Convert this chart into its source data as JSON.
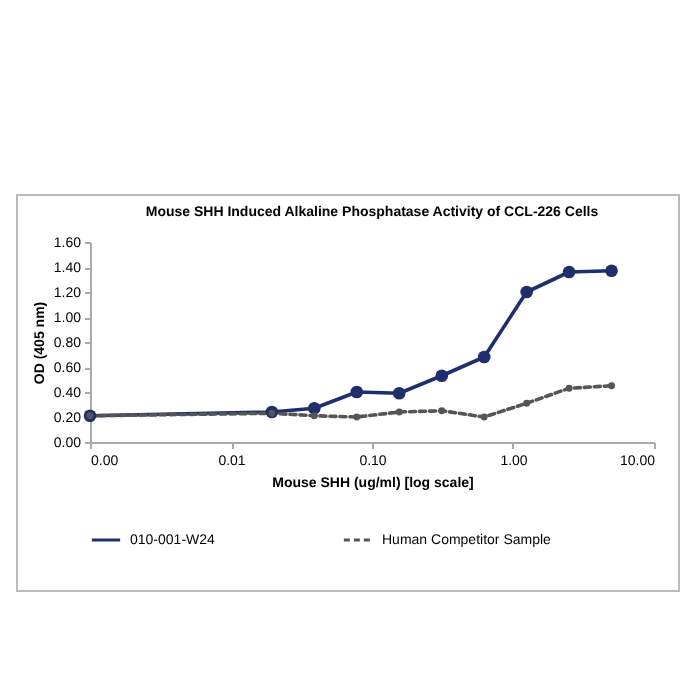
{
  "chart_data": {
    "type": "line",
    "title": "Mouse SHH Induced Alkaline Phosphatase Activity of CCL-226 Cells",
    "xlabel": "Mouse SHH (ug/ml) [log scale]",
    "ylabel": "OD (405 nm)",
    "log": "x",
    "x": [
      0.001,
      0.0195,
      0.039,
      0.078,
      0.156,
      0.3125,
      0.625,
      1.25,
      2.5,
      5
    ],
    "series": [
      {
        "name": "010-001-W24",
        "color": "#1f2f6e",
        "values": [
          0.21,
          0.24,
          0.27,
          0.4,
          0.39,
          0.53,
          0.68,
          1.2,
          1.36,
          1.37
        ]
      },
      {
        "name": "Human Competitor Sample",
        "color": "#555555",
        "line_style": "dashed",
        "values": [
          0.21,
          0.23,
          0.21,
          0.2,
          0.24,
          0.25,
          0.2,
          0.31,
          0.43,
          0.45
        ]
      }
    ],
    "xlim": [
      0.001,
      10
    ],
    "xticks": [
      {
        "value": 0.001,
        "label": "0.00"
      },
      {
        "value": 0.01,
        "label": "0.01"
      },
      {
        "value": 0.1,
        "label": "0.10"
      },
      {
        "value": 1,
        "label": "1.00"
      },
      {
        "value": 10,
        "label": "10.00"
      }
    ],
    "ylim": [
      0,
      1.6
    ],
    "yticks": [
      {
        "value": 0,
        "label": "0.00"
      },
      {
        "value": 0.2,
        "label": "0.20"
      },
      {
        "value": 0.4,
        "label": "0.40"
      },
      {
        "value": 0.6,
        "label": "0.60"
      },
      {
        "value": 0.8,
        "label": "0.80"
      },
      {
        "value": 1,
        "label": "1.00"
      },
      {
        "value": 1.2,
        "label": "1.20"
      },
      {
        "value": 1.4,
        "label": "1.40"
      },
      {
        "value": 1.6,
        "label": "1.60"
      }
    ],
    "marker": "circle",
    "legend": "bottom",
    "grid": false
  }
}
